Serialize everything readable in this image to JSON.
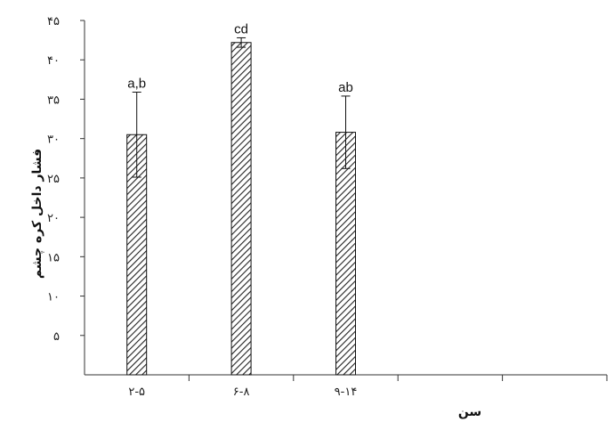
{
  "chart_data": {
    "type": "bar",
    "title": "",
    "xlabel": "سن",
    "ylabel": "فشار داخل کره چشم",
    "categories": [
      "۲-۵",
      "۶-۸",
      "۹-۱۴"
    ],
    "values": [
      30.5,
      42.2,
      30.8
    ],
    "error": [
      5.4,
      0.6,
      4.6
    ],
    "significance_labels": [
      "a,b",
      "cd",
      "ab"
    ],
    "ylim": [
      0,
      45
    ],
    "yticks": [
      {
        "value": 5,
        "label": "۵"
      },
      {
        "value": 10,
        "label": "۱۰"
      },
      {
        "value": 15,
        "label": "۱۵"
      },
      {
        "value": 20,
        "label": "۲۰"
      },
      {
        "value": 25,
        "label": "۲۵"
      },
      {
        "value": 30,
        "label": "۳۰"
      },
      {
        "value": 35,
        "label": "۳۵"
      },
      {
        "value": 40,
        "label": "۴۰"
      },
      {
        "value": 45,
        "label": "۴۵"
      }
    ],
    "x_slots": 5,
    "bar_fill": "hatched",
    "grid": false,
    "legend": "none"
  },
  "colors": {
    "axis": "#333333",
    "bar_stroke": "#111111",
    "hatch": "#222222",
    "background": "#ffffff"
  }
}
